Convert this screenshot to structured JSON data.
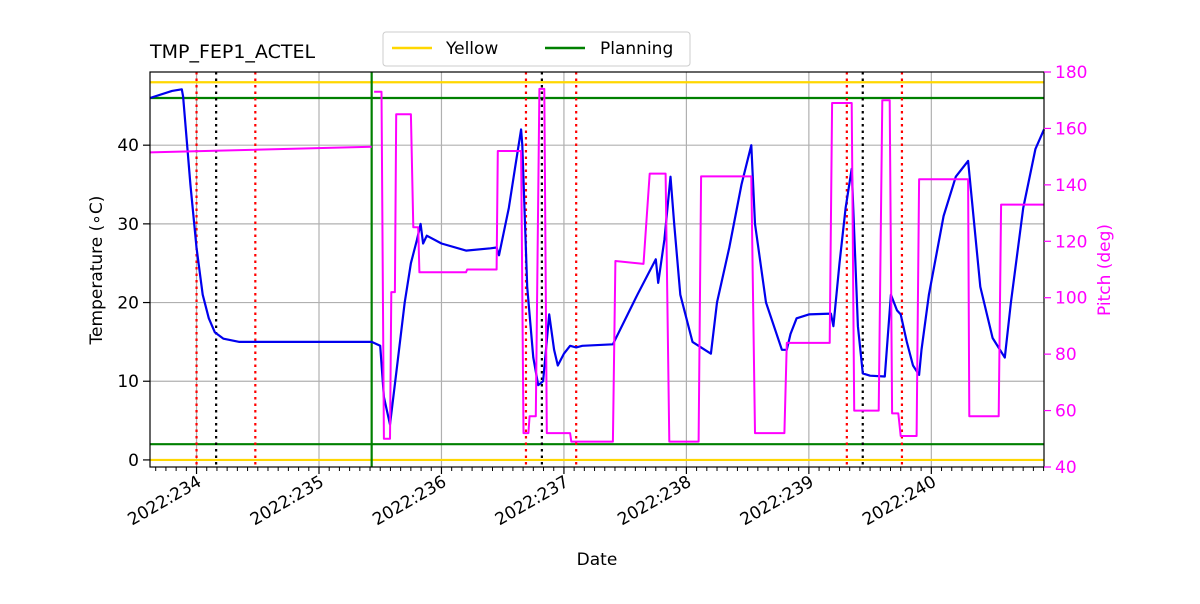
{
  "chart_data": {
    "type": "line",
    "title": "TMP_FEP1_ACTEL",
    "xlabel": "Date",
    "ylabel_left": "Temperature ($^\\circ$C)",
    "ylabel_left_display": "Temperature (∘C)",
    "ylabel_right": "Pitch (deg)",
    "x_unit": "day-of-year 2022",
    "xlim": [
      233.62,
      240.92
    ],
    "ylim_left": [
      -0.9,
      49.3
    ],
    "ylim_right": [
      40,
      180
    ],
    "grid": true,
    "legend": {
      "placement": "top-center",
      "entries": [
        "Yellow",
        "Planning"
      ]
    },
    "x_ticks": [
      {
        "value": 234,
        "label": "2022:234"
      },
      {
        "value": 235,
        "label": "2022:235"
      },
      {
        "value": 236,
        "label": "2022:236"
      },
      {
        "value": 237,
        "label": "2022:237"
      },
      {
        "value": 238,
        "label": "2022:238"
      },
      {
        "value": 239,
        "label": "2022:239"
      },
      {
        "value": 240,
        "label": "2022:240"
      }
    ],
    "y_ticks_left": [
      0,
      10,
      20,
      30,
      40
    ],
    "y_ticks_right": [
      40,
      60,
      80,
      100,
      120,
      140,
      160,
      180
    ],
    "colors": {
      "yellow_limit": "#ffd700",
      "planning_limit": "#008000",
      "temperature": "#0000ee",
      "pitch": "#ff00ff",
      "red_markers": "#ff0000",
      "black_markers": "#000000",
      "now_line": "#008000",
      "grid": "#b0b0b0"
    },
    "horizontal_limits": [
      {
        "name": "Yellow",
        "values": [
          0,
          48.0
        ]
      },
      {
        "name": "Planning",
        "values": [
          2.0,
          46.0
        ]
      }
    ],
    "now_line_x": 235.43,
    "red_dotted_x": [
      234.0,
      234.48,
      236.69,
      237.1,
      239.31,
      239.76
    ],
    "black_dotted_x": [
      234.16,
      236.82,
      239.44
    ],
    "series": [
      {
        "name": "Temperature",
        "axis": "left",
        "points": [
          [
            233.62,
            46.0
          ],
          [
            233.8,
            46.9
          ],
          [
            233.88,
            47.1
          ],
          [
            233.89,
            46.2
          ],
          [
            233.95,
            35.0
          ],
          [
            234.0,
            27.0
          ],
          [
            234.05,
            21.0
          ],
          [
            234.1,
            18.0
          ],
          [
            234.15,
            16.2
          ],
          [
            234.22,
            15.4
          ],
          [
            234.35,
            15.0
          ],
          [
            234.6,
            15.0
          ],
          [
            235.0,
            15.0
          ],
          [
            235.43,
            15.0
          ],
          [
            235.5,
            14.5
          ],
          [
            235.53,
            8.0
          ],
          [
            235.58,
            4.5
          ],
          [
            235.63,
            11.0
          ],
          [
            235.7,
            20.0
          ],
          [
            235.75,
            25.0
          ],
          [
            235.8,
            28.0
          ],
          [
            235.83,
            30.0
          ],
          [
            235.85,
            27.5
          ],
          [
            235.88,
            28.5
          ],
          [
            236.0,
            27.5
          ],
          [
            236.2,
            26.6
          ],
          [
            236.4,
            26.9
          ],
          [
            236.45,
            27.0
          ],
          [
            236.47,
            26.0
          ],
          [
            236.55,
            32.0
          ],
          [
            236.6,
            37.0
          ],
          [
            236.65,
            42.0
          ],
          [
            236.66,
            40.0
          ],
          [
            236.7,
            22.0
          ],
          [
            236.75,
            13.0
          ],
          [
            236.79,
            9.5
          ],
          [
            236.83,
            10.0
          ],
          [
            236.88,
            18.5
          ],
          [
            236.92,
            14.0
          ],
          [
            236.95,
            12.0
          ],
          [
            237.0,
            13.5
          ],
          [
            237.05,
            14.5
          ],
          [
            237.1,
            14.3
          ],
          [
            237.15,
            14.5
          ],
          [
            237.4,
            14.7
          ],
          [
            237.6,
            21.0
          ],
          [
            237.75,
            25.5
          ],
          [
            237.77,
            22.5
          ],
          [
            237.82,
            28.0
          ],
          [
            237.87,
            36.0
          ],
          [
            237.9,
            30.0
          ],
          [
            237.95,
            21.0
          ],
          [
            238.05,
            15.0
          ],
          [
            238.15,
            14.0
          ],
          [
            238.2,
            13.5
          ],
          [
            238.25,
            20.0
          ],
          [
            238.35,
            27.0
          ],
          [
            238.45,
            35.0
          ],
          [
            238.53,
            40.0
          ],
          [
            238.56,
            30.0
          ],
          [
            238.65,
            20.0
          ],
          [
            238.78,
            14.0
          ],
          [
            238.82,
            14.0
          ],
          [
            238.85,
            16.0
          ],
          [
            238.9,
            18.0
          ],
          [
            239.0,
            18.5
          ],
          [
            239.18,
            18.6
          ],
          [
            239.2,
            17.0
          ],
          [
            239.25,
            25.0
          ],
          [
            239.3,
            32.0
          ],
          [
            239.35,
            37.0
          ],
          [
            239.4,
            17.0
          ],
          [
            239.44,
            11.0
          ],
          [
            239.5,
            10.7
          ],
          [
            239.62,
            10.6
          ],
          [
            239.67,
            21.0
          ],
          [
            239.72,
            19.0
          ],
          [
            239.75,
            18.5
          ],
          [
            239.8,
            15.0
          ],
          [
            239.85,
            12.0
          ],
          [
            239.9,
            10.8
          ],
          [
            239.92,
            14.0
          ],
          [
            239.98,
            21.0
          ],
          [
            240.1,
            31.0
          ],
          [
            240.2,
            36.0
          ],
          [
            240.3,
            38.0
          ],
          [
            240.35,
            30.0
          ],
          [
            240.4,
            22.0
          ],
          [
            240.5,
            15.5
          ],
          [
            240.6,
            13.0
          ],
          [
            240.65,
            20.0
          ],
          [
            240.75,
            32.0
          ],
          [
            240.85,
            39.5
          ],
          [
            240.92,
            42.0
          ]
        ]
      },
      {
        "name": "Pitch",
        "axis": "right",
        "points": [
          [
            233.62,
            151.5
          ],
          [
            235.43,
            153.5
          ],
          [
            235.44,
            null
          ],
          [
            235.45,
            173
          ],
          [
            235.51,
            173
          ],
          [
            235.53,
            50
          ],
          [
            235.58,
            50
          ],
          [
            235.59,
            102
          ],
          [
            235.62,
            102
          ],
          [
            235.63,
            165
          ],
          [
            235.75,
            165
          ],
          [
            235.77,
            125
          ],
          [
            235.81,
            125
          ],
          [
            235.82,
            109
          ],
          [
            236.2,
            109
          ],
          [
            236.21,
            110
          ],
          [
            236.45,
            110
          ],
          [
            236.46,
            152
          ],
          [
            236.65,
            152
          ],
          [
            236.67,
            52
          ],
          [
            236.71,
            52
          ],
          [
            236.72,
            58
          ],
          [
            236.77,
            58
          ],
          [
            236.8,
            174
          ],
          [
            236.84,
            174
          ],
          [
            236.86,
            52
          ],
          [
            237.05,
            52
          ],
          [
            237.06,
            49
          ],
          [
            237.4,
            49
          ],
          [
            237.42,
            113
          ],
          [
            237.65,
            112
          ],
          [
            237.7,
            144
          ],
          [
            237.83,
            144
          ],
          [
            237.86,
            49
          ],
          [
            238.1,
            49
          ],
          [
            238.12,
            143
          ],
          [
            238.53,
            143
          ],
          [
            238.56,
            52
          ],
          [
            238.8,
            52
          ],
          [
            238.82,
            84
          ],
          [
            239.17,
            84
          ],
          [
            239.19,
            169
          ],
          [
            239.35,
            169
          ],
          [
            239.37,
            60
          ],
          [
            239.57,
            60
          ],
          [
            239.6,
            170
          ],
          [
            239.66,
            170
          ],
          [
            239.68,
            59
          ],
          [
            239.73,
            59
          ],
          [
            239.75,
            51
          ],
          [
            239.88,
            51
          ],
          [
            239.9,
            142
          ],
          [
            240.3,
            142
          ],
          [
            240.31,
            58
          ],
          [
            240.55,
            58
          ],
          [
            240.57,
            133
          ],
          [
            240.92,
            133
          ]
        ]
      }
    ]
  }
}
